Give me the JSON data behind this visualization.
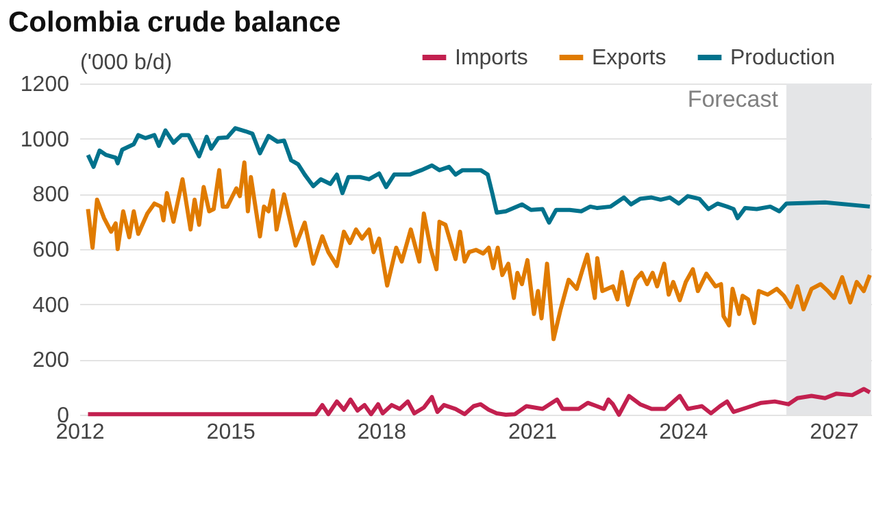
{
  "chart_data": {
    "type": "line",
    "title": "Colombia crude balance",
    "ylabel": "('000 b/d)",
    "legend": "top right",
    "grid": "y",
    "xlim": [
      2012,
      2027.75
    ],
    "xticks": [
      2012,
      2015,
      2018,
      2021,
      2024,
      2027
    ],
    "ylim": [
      0,
      1200
    ],
    "yticks": [
      0,
      200,
      400,
      600,
      800,
      1000,
      1200
    ],
    "bands": [
      {
        "axis": "x",
        "from": 2026.06,
        "to": 2027.75,
        "label": "Forecast",
        "color": "#e4e5e7"
      }
    ],
    "series": [
      {
        "name": "Imports",
        "color": "#c2204f",
        "x": [
          2012.17,
          2016.7,
          2016.83,
          2016.95,
          2017.12,
          2017.26,
          2017.39,
          2017.53,
          2017.67,
          2017.8,
          2017.94,
          2018.03,
          2018.21,
          2018.37,
          2018.53,
          2018.66,
          2018.85,
          2019.01,
          2019.12,
          2019.25,
          2019.48,
          2019.66,
          2019.84,
          2019.98,
          2020.14,
          2020.3,
          2020.48,
          2020.66,
          2020.89,
          2021.21,
          2021.5,
          2021.61,
          2021.93,
          2022.11,
          2022.29,
          2022.43,
          2022.52,
          2022.61,
          2022.73,
          2022.93,
          2023.15,
          2023.38,
          2023.65,
          2023.94,
          2024.1,
          2024.38,
          2024.56,
          2024.74,
          2024.88,
          2025.01,
          2025.28,
          2025.56,
          2025.83,
          2026.1,
          2026.28,
          2026.56,
          2026.83,
          2027.05,
          2027.37,
          2027.6,
          2027.72
        ],
        "values": [
          2,
          2,
          35,
          2,
          48,
          18,
          55,
          15,
          35,
          2,
          38,
          5,
          35,
          21,
          48,
          5,
          26,
          64,
          10,
          35,
          21,
          2,
          31,
          38,
          18,
          5,
          0,
          2,
          31,
          21,
          55,
          21,
          21,
          43,
          31,
          21,
          55,
          38,
          0,
          68,
          38,
          21,
          21,
          68,
          21,
          31,
          5,
          31,
          48,
          10,
          26,
          43,
          48,
          38,
          60,
          68,
          60,
          76,
          71,
          93,
          81
        ]
      },
      {
        "name": "Exports",
        "color": "#e07b00",
        "x": [
          2012.17,
          2012.26,
          2012.35,
          2012.49,
          2012.63,
          2012.72,
          2012.76,
          2012.87,
          2012.99,
          2013.08,
          2013.17,
          2013.35,
          2013.49,
          2013.62,
          2013.67,
          2013.74,
          2013.87,
          2014.05,
          2014.21,
          2014.29,
          2014.38,
          2014.47,
          2014.58,
          2014.67,
          2014.78,
          2014.85,
          2014.94,
          2015.12,
          2015.19,
          2015.28,
          2015.35,
          2015.41,
          2015.59,
          2015.67,
          2015.76,
          2015.85,
          2015.92,
          2016.07,
          2016.3,
          2016.48,
          2016.65,
          2016.83,
          2016.95,
          2017.12,
          2017.26,
          2017.38,
          2017.5,
          2017.62,
          2017.76,
          2017.85,
          2017.96,
          2018.12,
          2018.3,
          2018.41,
          2018.59,
          2018.76,
          2018.85,
          2018.98,
          2019.1,
          2019.16,
          2019.28,
          2019.48,
          2019.57,
          2019.66,
          2019.75,
          2019.89,
          2020.03,
          2020.14,
          2020.23,
          2020.32,
          2020.41,
          2020.53,
          2020.64,
          2020.71,
          2020.8,
          2020.91,
          2021.04,
          2021.12,
          2021.19,
          2021.3,
          2021.43,
          2021.57,
          2021.73,
          2021.89,
          2022.0,
          2022.1,
          2022.25,
          2022.3,
          2022.4,
          2022.61,
          2022.7,
          2022.79,
          2022.91,
          2023.06,
          2023.18,
          2023.29,
          2023.4,
          2023.49,
          2023.63,
          2023.72,
          2023.81,
          2023.94,
          2024.06,
          2024.2,
          2024.3,
          2024.47,
          2024.65,
          2024.76,
          2024.81,
          2024.92,
          2024.99,
          2025.12,
          2025.19,
          2025.3,
          2025.42,
          2025.51,
          2025.69,
          2025.87,
          2026.01,
          2026.15,
          2026.28,
          2026.4,
          2026.56,
          2026.74,
          2026.87,
          2027.01,
          2027.17,
          2027.33,
          2027.46,
          2027.6,
          2027.72
        ],
        "values": [
          745,
          605,
          779,
          712,
          663,
          693,
          600,
          737,
          643,
          737,
          655,
          729,
          765,
          754,
          704,
          803,
          699,
          853,
          671,
          779,
          688,
          825,
          737,
          745,
          886,
          754,
          754,
          820,
          792,
          914,
          737,
          861,
          646,
          754,
          737,
          812,
          671,
          798,
          613,
          696,
          547,
          646,
          589,
          539,
          663,
          622,
          671,
          638,
          671,
          589,
          638,
          468,
          605,
          555,
          671,
          555,
          729,
          605,
          527,
          699,
          688,
          564,
          663,
          555,
          589,
          597,
          584,
          605,
          531,
          605,
          506,
          547,
          423,
          514,
          473,
          560,
          365,
          448,
          349,
          547,
          274,
          382,
          489,
          456,
          522,
          580,
          423,
          567,
          448,
          465,
          418,
          517,
          398,
          489,
          514,
          473,
          514,
          465,
          547,
          435,
          481,
          415,
          481,
          527,
          448,
          511,
          465,
          473,
          357,
          324,
          456,
          365,
          431,
          418,
          332,
          448,
          435,
          456,
          431,
          390,
          465,
          382,
          456,
          473,
          451,
          423,
          498,
          407,
          481,
          448,
          506
        ]
      },
      {
        "name": "Production",
        "color": "#00728c",
        "x": [
          2012.17,
          2012.28,
          2012.4,
          2012.53,
          2012.72,
          2012.76,
          2012.85,
          2013.08,
          2013.17,
          2013.31,
          2013.49,
          2013.58,
          2013.71,
          2013.87,
          2014.03,
          2014.17,
          2014.38,
          2014.53,
          2014.62,
          2014.76,
          2014.94,
          2015.1,
          2015.3,
          2015.44,
          2015.59,
          2015.76,
          2015.94,
          2016.07,
          2016.21,
          2016.35,
          2016.48,
          2016.65,
          2016.8,
          2016.99,
          2017.12,
          2017.23,
          2017.35,
          2017.58,
          2017.76,
          2017.96,
          2018.1,
          2018.26,
          2018.57,
          2018.8,
          2019.01,
          2019.16,
          2019.35,
          2019.48,
          2019.62,
          2019.98,
          2020.12,
          2020.21,
          2020.3,
          2020.48,
          2020.8,
          2020.98,
          2021.21,
          2021.34,
          2021.48,
          2021.75,
          2021.98,
          2022.16,
          2022.29,
          2022.56,
          2022.83,
          2022.97,
          2023.15,
          2023.38,
          2023.56,
          2023.74,
          2023.92,
          2024.1,
          2024.33,
          2024.51,
          2024.69,
          2024.88,
          2025.01,
          2025.09,
          2025.24,
          2025.47,
          2025.74,
          2025.92,
          2026.06,
          2026.83,
          2027.72
        ],
        "values": [
          941,
          898,
          957,
          941,
          931,
          911,
          960,
          980,
          1013,
          1002,
          1013,
          974,
          1030,
          985,
          1013,
          1013,
          936,
          1007,
          964,
          1002,
          1005,
          1038,
          1027,
          1018,
          947,
          1010,
          989,
          993,
          922,
          907,
          870,
          828,
          853,
          836,
          870,
          803,
          861,
          861,
          853,
          874,
          825,
          870,
          870,
          886,
          903,
          886,
          898,
          870,
          886,
          886,
          870,
          803,
          732,
          737,
          762,
          742,
          745,
          696,
          742,
          742,
          737,
          754,
          749,
          754,
          787,
          762,
          782,
          787,
          779,
          787,
          765,
          792,
          782,
          745,
          765,
          754,
          745,
          712,
          749,
          745,
          754,
          737,
          765,
          769,
          754
        ]
      }
    ]
  }
}
